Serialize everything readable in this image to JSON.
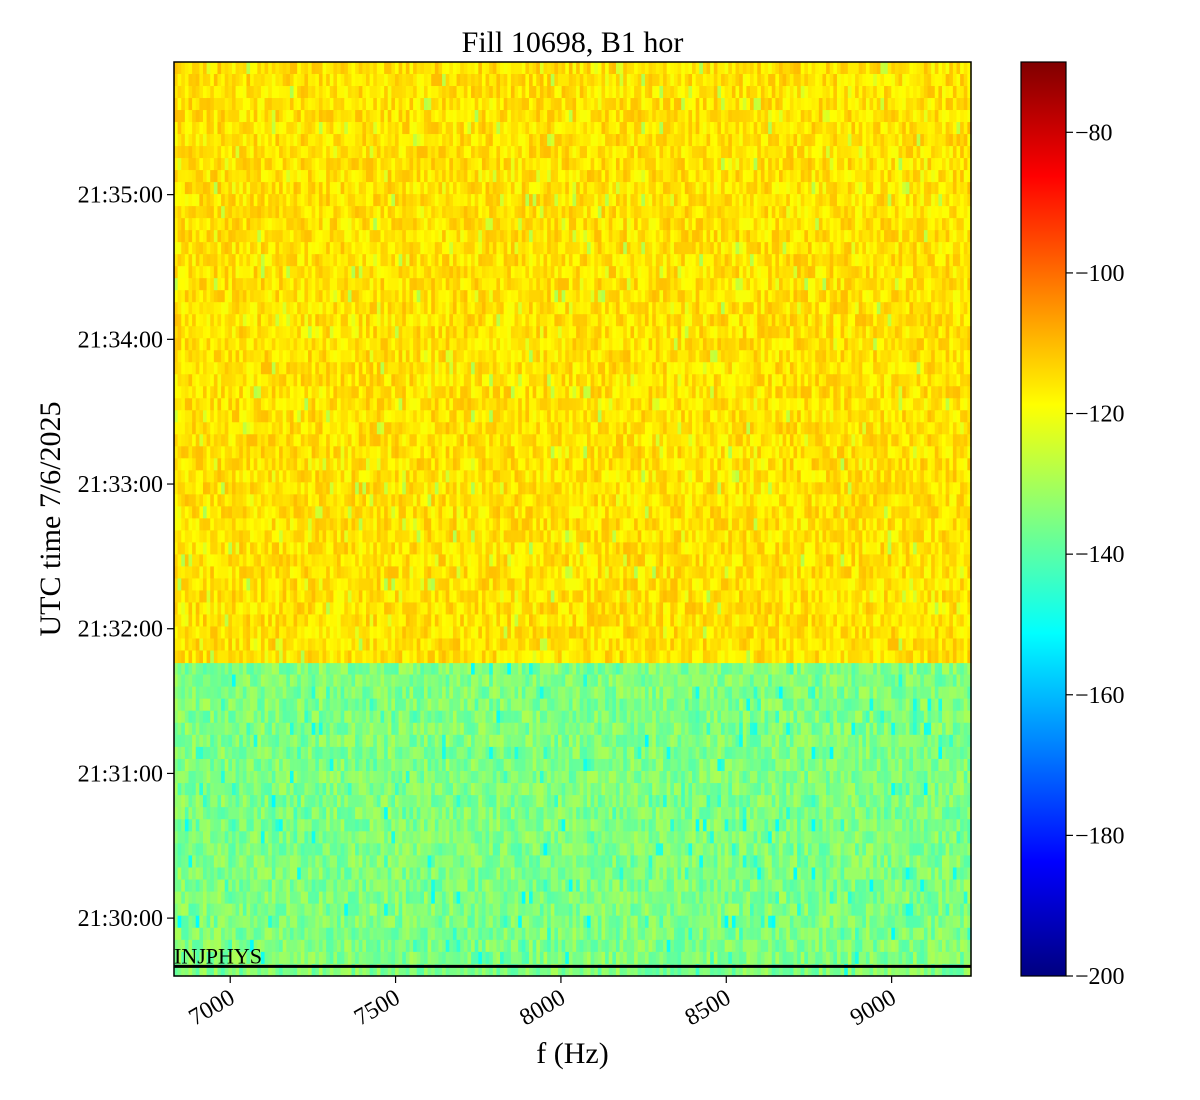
{
  "chart_data": {
    "type": "heatmap",
    "title": "Fill 10698, B1 hor",
    "xlabel": "f (Hz)",
    "ylabel": "UTC time 7/6/2025",
    "xlim": [
      6830,
      9240
    ],
    "x_ticks": [
      7000,
      7500,
      8000,
      8500,
      9000
    ],
    "x_tick_labels": [
      "7000",
      "7500",
      "8000",
      "8500",
      "9000"
    ],
    "ylim": [
      "21:29:36",
      "21:35:55"
    ],
    "y_ticks": [
      "21:30:00",
      "21:31:00",
      "21:32:00",
      "21:33:00",
      "21:34:00",
      "21:35:00"
    ],
    "y_tick_labels": [
      "21:30:00",
      "21:31:00",
      "21:32:00",
      "21:33:00",
      "21:34:00",
      "21:35:00"
    ],
    "colormap": "jet",
    "colorbar": {
      "range": [
        -200,
        -70
      ],
      "ticks": [
        -200,
        -180,
        -160,
        -140,
        -120,
        -100,
        -80
      ],
      "tick_labels": [
        "−200",
        "−180",
        "−160",
        "−140",
        "−120",
        "−100",
        "−80"
      ]
    },
    "regions": [
      {
        "time_start": "21:29:36",
        "time_end": "21:31:46",
        "typical_value": -135,
        "spread": 6
      },
      {
        "time_start": "21:31:46",
        "time_end": "21:35:55",
        "typical_value": -115,
        "spread": 5
      }
    ],
    "annotations": [
      {
        "text": "INJPHYS",
        "time": "21:29:40"
      }
    ]
  }
}
